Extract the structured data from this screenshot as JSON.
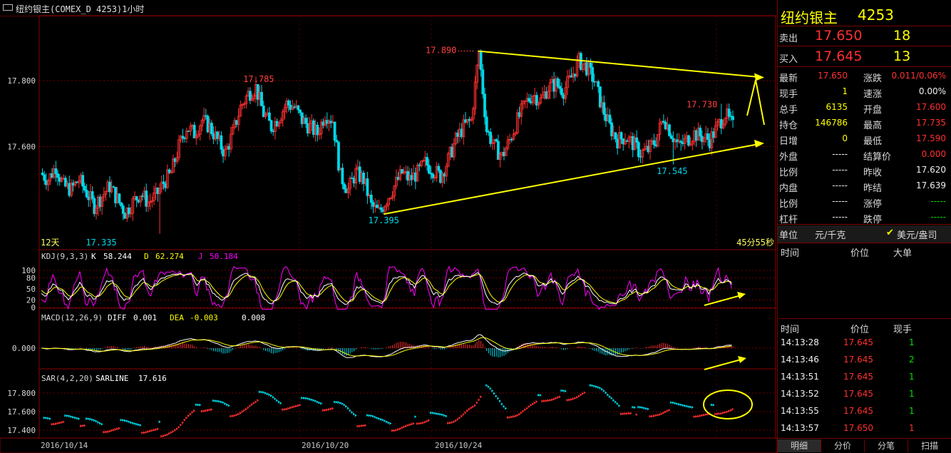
{
  "title": "纽约银主(COMEX_D 4253)1小时",
  "main_chart": {
    "y_ticks": [
      "17.800",
      "17.600"
    ],
    "period_label": "12天",
    "countdown": "45分55秒",
    "annotations": [
      "17.890",
      "17.785",
      "17.730",
      "17.545",
      "17.395",
      "17.335"
    ]
  },
  "kdj": {
    "label": "KDJ(9,3,3)",
    "k_label": "K",
    "k_value": "58.244",
    "d_label": "D",
    "d_value": "62.274",
    "j_label": "J",
    "j_value": "50.184",
    "y_ticks": [
      "100",
      "80",
      "50",
      "20",
      "0"
    ]
  },
  "macd": {
    "label": "MACD(12,26,9)",
    "diff_label": "DIFF",
    "diff_value": "0.001",
    "dea_label": "DEA",
    "dea_value": "-0.003",
    "macd_value": "0.008",
    "y_ticks": [
      "0.000"
    ]
  },
  "sar": {
    "label": "SAR(4,2,20)",
    "line_label": "SARLINE",
    "line_value": "17.616",
    "y_ticks": [
      "17.800",
      "17.600",
      "17.400"
    ]
  },
  "x_axis": {
    "dates": [
      "2016/10/14",
      "2016/10/20",
      "2016/10/24"
    ]
  },
  "colors": {
    "up": "#ff3030",
    "down": "#00d8e8",
    "accent": "#ffff00",
    "k": "#ffffff",
    "d": "#ffff00",
    "j": "#ff00ff"
  },
  "chart_data": {
    "type": "candlestick",
    "title": "纽约银主(COMEX_D 4253)1小时",
    "ylim": [
      17.3,
      17.98
    ],
    "marked_prices": {
      "high": 17.89,
      "peak1": 17.785,
      "recent_high": 17.73,
      "recent_low": 17.545,
      "low1": 17.395,
      "period_low": 17.335
    },
    "close_path": [
      17.52,
      17.5,
      17.54,
      17.48,
      17.47,
      17.5,
      17.46,
      17.42,
      17.45,
      17.48,
      17.44,
      17.4,
      17.43,
      17.46,
      17.43,
      17.45,
      17.49,
      17.52,
      17.6,
      17.66,
      17.64,
      17.68,
      17.66,
      17.62,
      17.58,
      17.64,
      17.72,
      17.76,
      17.78,
      17.7,
      17.66,
      17.69,
      17.73,
      17.72,
      17.68,
      17.66,
      17.64,
      17.7,
      17.68,
      17.51,
      17.47,
      17.52,
      17.5,
      17.42,
      17.4,
      17.44,
      17.48,
      17.52,
      17.5,
      17.52,
      17.55,
      17.53,
      17.51,
      17.56,
      17.62,
      17.66,
      17.68,
      17.89,
      17.65,
      17.6,
      17.57,
      17.62,
      17.68,
      17.73,
      17.76,
      17.74,
      17.78,
      17.79,
      17.77,
      17.81,
      17.86,
      17.84,
      17.8,
      17.72,
      17.66,
      17.62,
      17.63,
      17.61,
      17.58,
      17.59,
      17.62,
      17.69,
      17.64,
      17.6,
      17.62,
      17.64,
      17.63,
      17.62,
      17.66,
      17.7,
      17.66
    ],
    "trendlines": [
      {
        "name": "upper",
        "from_price": 17.89,
        "to_price": 17.81
      },
      {
        "name": "lower",
        "from_price": 17.395,
        "to_price": 17.61
      }
    ]
  },
  "quote": {
    "name": "纽约银主",
    "code": "4253",
    "sell_label": "卖出",
    "sell_price": "17.650",
    "sell_vol": "18",
    "buy_label": "买入",
    "buy_price": "17.645",
    "buy_vol": "13",
    "rows": [
      {
        "l1": "最新",
        "v1": "17.650",
        "l2": "涨跌",
        "v2": "0.011/0.06%"
      },
      {
        "l1": "现手",
        "v1": "1",
        "l2": "速涨",
        "v2": "0.00%"
      },
      {
        "l1": "总手",
        "v1": "6135",
        "l2": "开盘",
        "v2": "17.600"
      },
      {
        "l1": "持仓",
        "v1": "146786",
        "l2": "最高",
        "v2": "17.735"
      },
      {
        "l1": "日增",
        "v1": "0",
        "l2": "最低",
        "v2": "17.590"
      },
      {
        "l1": "外盘",
        "v1": "-----",
        "l2": "结算价",
        "v2": "0.000"
      },
      {
        "l1": "比例",
        "v1": "-----",
        "l2": "昨收",
        "v2": "17.620"
      },
      {
        "l1": "内盘",
        "v1": "-----",
        "l2": "昨结",
        "v2": "17.639"
      },
      {
        "l1": "比例",
        "v1": "-----",
        "l2": "涨停",
        "v2": "-----"
      },
      {
        "l1": "杠杆",
        "v1": "-----",
        "l2": "跌停",
        "v2": "-----"
      }
    ],
    "unit_label": "单位",
    "unit_cny": "元/千克",
    "unit_usd": "美元/盎司",
    "bigorder_headers": [
      "时间",
      "价位",
      "大单"
    ],
    "tick_headers": [
      "时间",
      "价位",
      "现手"
    ],
    "ticks": [
      {
        "time": "14:13:28",
        "price": "17.645",
        "vol": "1"
      },
      {
        "time": "14:13:46",
        "price": "17.645",
        "vol": "2"
      },
      {
        "time": "14:13:51",
        "price": "17.645",
        "vol": "1"
      },
      {
        "time": "14:13:52",
        "price": "17.645",
        "vol": "1"
      },
      {
        "time": "14:13:55",
        "price": "17.645",
        "vol": "1"
      },
      {
        "time": "14:13:57",
        "price": "17.650",
        "vol": "1"
      }
    ],
    "tabs": [
      "明细",
      "分价",
      "分笔",
      "扫描"
    ]
  }
}
